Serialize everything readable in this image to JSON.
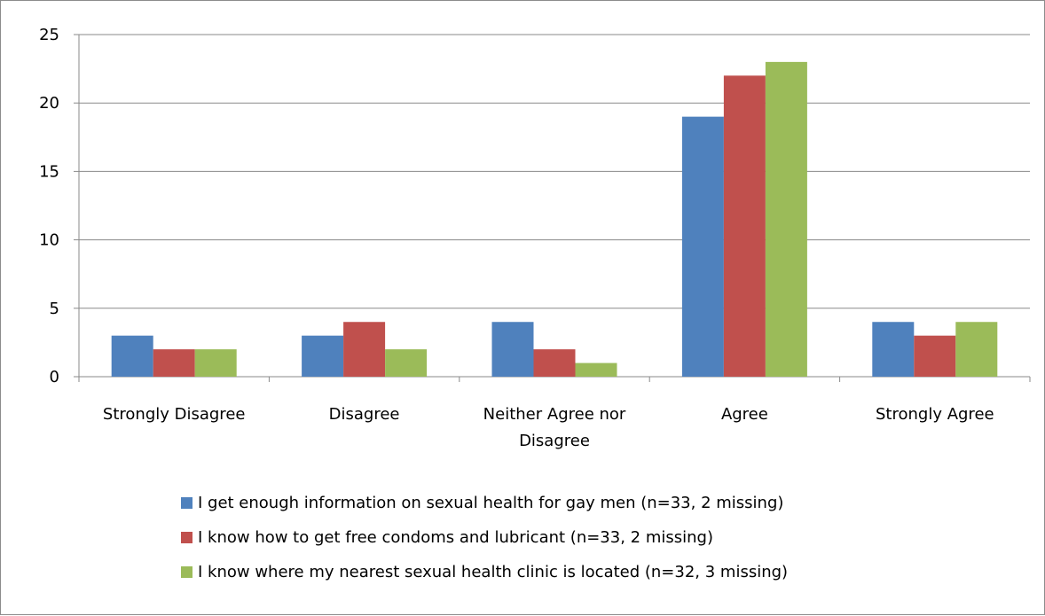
{
  "chart_data": {
    "type": "bar",
    "categories": [
      "Strongly Disagree",
      "Disagree",
      "Neither Agree nor Disagree",
      "Agree",
      "Strongly Agree"
    ],
    "series": [
      {
        "name": "I get enough information on sexual health for gay men (n=33, 2 missing)",
        "color": "#4F81BD",
        "values": [
          3,
          3,
          4,
          19,
          4
        ]
      },
      {
        "name": "I know how to get free condoms and lubricant (n=33, 2 missing)",
        "color": "#C0504D",
        "values": [
          2,
          4,
          2,
          22,
          3
        ]
      },
      {
        "name": "I know where my nearest sexual health clinic is located (n=32, 3 missing)",
        "color": "#9BBB59",
        "values": [
          2,
          2,
          1,
          23,
          4
        ]
      }
    ],
    "yticks": [
      0,
      5,
      10,
      15,
      20,
      25
    ],
    "ylim": [
      0,
      25
    ],
    "title": "",
    "xlabel": "",
    "ylabel": "",
    "grid": true,
    "legend_position": "bottom"
  }
}
